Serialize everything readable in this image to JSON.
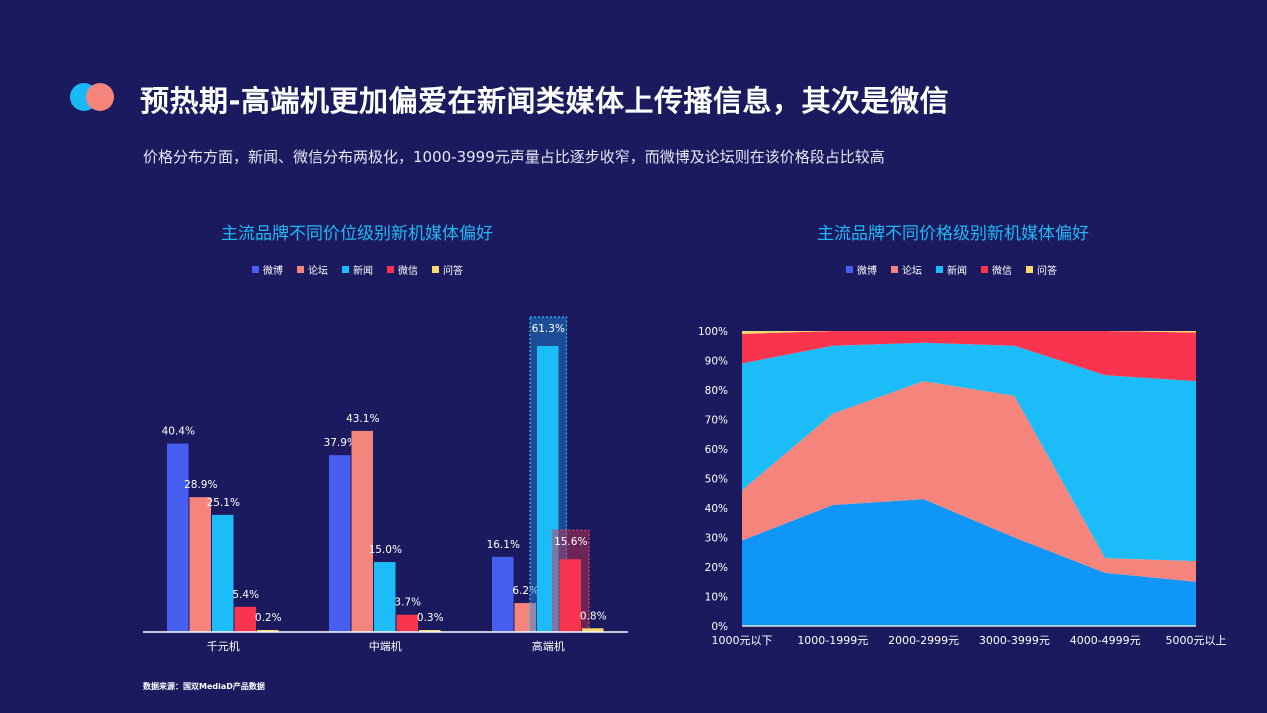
{
  "header": {
    "title": "预热期-高端机更加偏爱在新闻类媒体上传播信息，其次是微信",
    "subtitle": "价格分布方面，新闻、微信分布两极化，1000-3999元声量占比逐步收窄，而微博及论坛则在该价格段占比较高"
  },
  "footer": {
    "source": "数据来源：国双MediaD产品数据"
  },
  "colors": {
    "background": "#1b1a5e",
    "微博": "#465ff0",
    "论坛": "#f4847c",
    "新闻": "#1bbcf8",
    "微信": "#f9344f",
    "问答": "#f7d96e",
    "area_weibo": "#0f96f8"
  },
  "legend": [
    "微博",
    "论坛",
    "新闻",
    "微信",
    "问答"
  ],
  "chart_data": [
    {
      "type": "bar",
      "title": "主流品牌不同价位级别新机媒体偏好",
      "categories": [
        "千元机",
        "中端机",
        "高端机"
      ],
      "series": [
        {
          "name": "微博",
          "values": [
            40.4,
            37.9,
            16.1
          ]
        },
        {
          "name": "论坛",
          "values": [
            28.9,
            43.1,
            6.2
          ]
        },
        {
          "name": "新闻",
          "values": [
            25.1,
            15.0,
            61.3
          ]
        },
        {
          "name": "微信",
          "values": [
            5.4,
            3.7,
            15.6
          ]
        },
        {
          "name": "问答",
          "values": [
            0.2,
            0.3,
            0.8
          ]
        }
      ],
      "data_labels": [
        [
          "40.4%",
          "37.9%",
          "16.1%"
        ],
        [
          "28.9%",
          "43.1%",
          "6.2%"
        ],
        [
          "25.1%",
          "15.0%",
          "61.3%"
        ],
        [
          "5.4%",
          "3.7%",
          "15.6%"
        ],
        [
          "0.2%",
          "0.3%",
          "0.8%"
        ]
      ],
      "highlighted": [
        [
          "新闻",
          "高端机"
        ],
        [
          "微信",
          "高端机"
        ]
      ],
      "legend_position": "top-center",
      "grid": false
    },
    {
      "type": "area",
      "stacked_percent": true,
      "title": "主流品牌不同价格级别新机媒体偏好",
      "categories": [
        "1000元以下",
        "1000-1999元",
        "2000-2999元",
        "3000-3999元",
        "4000-4999元",
        "5000元以上"
      ],
      "series": [
        {
          "name": "微博",
          "values": [
            29,
            41,
            43,
            30,
            18,
            15
          ]
        },
        {
          "name": "论坛",
          "values": [
            17,
            31,
            40,
            48,
            5,
            7
          ]
        },
        {
          "name": "新闻",
          "values": [
            43,
            23,
            13,
            17,
            62,
            61
          ]
        },
        {
          "name": "微信",
          "values": [
            10,
            5,
            4,
            5,
            15,
            16.5
          ]
        },
        {
          "name": "问答",
          "values": [
            1,
            0,
            0,
            0,
            0,
            0.5
          ]
        }
      ],
      "ylim": [
        0,
        100
      ],
      "yticks": [
        "0%",
        "10%",
        "20%",
        "30%",
        "40%",
        "50%",
        "60%",
        "70%",
        "80%",
        "90%",
        "100%"
      ],
      "legend_position": "top-center",
      "grid": false
    }
  ]
}
